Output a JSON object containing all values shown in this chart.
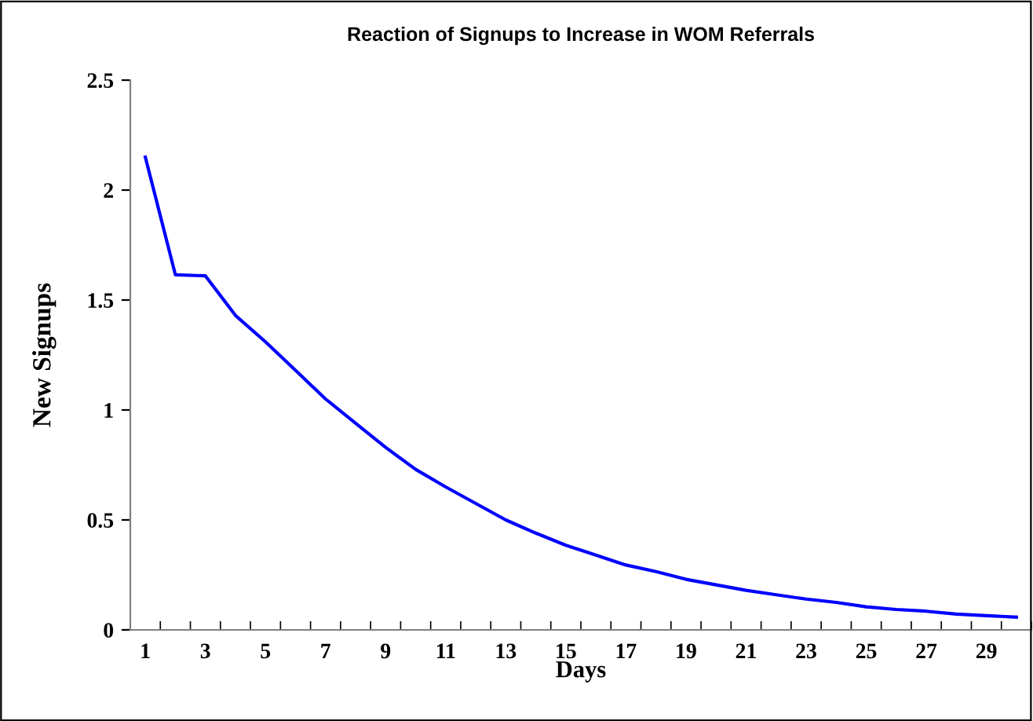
{
  "chart_data": {
    "type": "line",
    "title": "Reaction of Signups to Increase in WOM Referrals",
    "xlabel": "Days",
    "ylabel": "New Signups",
    "categories": [
      "1",
      null,
      "3",
      null,
      "5",
      null,
      "7",
      null,
      "9",
      null,
      "11",
      null,
      "13",
      null,
      "15",
      null,
      "17",
      null,
      "19",
      null,
      "21",
      null,
      "23",
      null,
      "25",
      null,
      "27",
      null,
      "29",
      null
    ],
    "series": [
      {
        "color": "#0000ff",
        "values": [
          2.15,
          1.615,
          1.61,
          1.43,
          1.31,
          1.18,
          1.05,
          0.94,
          0.83,
          0.73,
          0.65,
          0.575,
          0.5,
          0.44,
          0.385,
          0.34,
          0.295,
          0.265,
          0.23,
          0.205,
          0.18,
          0.16,
          0.14,
          0.125,
          0.105,
          0.093,
          0.085,
          0.072,
          0.065,
          0.058
        ]
      }
    ],
    "ylim": [
      0,
      2.5
    ],
    "yticks": [
      0,
      0.5,
      1,
      1.5,
      2,
      2.5
    ],
    "grid": false,
    "marker": "none",
    "line_style": "solid"
  }
}
